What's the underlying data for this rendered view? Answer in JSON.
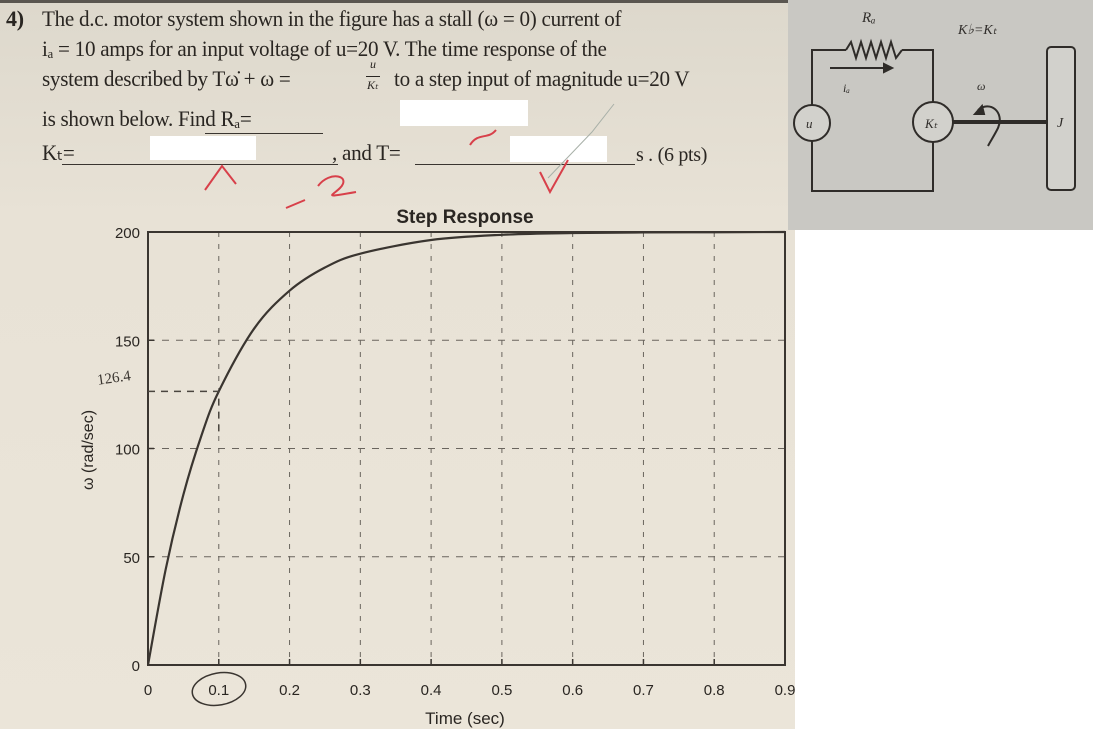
{
  "question": {
    "number": "4)",
    "line1": "The d.c. motor system shown in the figure has a stall (ω = 0) current of",
    "line2": "iₐ = 10 amps for an input voltage of u=20 V. The time response of the",
    "line3_a": "system described by Tω̇ + ω =",
    "line3_frac_num": "u",
    "line3_frac_den": "Kₜ",
    "line3_b": "to a step input of magnitude u=20 V",
    "line4": "is shown below. Find Rₐ=",
    "line5_a": "Kₜ=",
    "line5_b": ", and T=",
    "line5_c": "s . (6 pts)"
  },
  "diagram": {
    "resistor_label": "Rₐ",
    "current_label": "iₐ",
    "source_label": "u",
    "motor_label": "Kₜ",
    "constant_label": "K♭=Kₜ",
    "speed_label": "ω",
    "inertia_label": "J"
  },
  "handwriting": {
    "value_label": "126.4",
    "grade_mark": "-2"
  },
  "chart_data": {
    "type": "line",
    "title": "Step Response",
    "xlabel": "Time (sec)",
    "ylabel": "ω (rad/sec)",
    "xlim": [
      0,
      0.9
    ],
    "ylim": [
      0,
      200
    ],
    "xticks": [
      "0",
      "0.1",
      "0.2",
      "0.3",
      "0.4",
      "0.5",
      "0.6",
      "0.7",
      "0.8",
      "0.9"
    ],
    "yticks": [
      "0",
      "50",
      "100",
      "150",
      "200"
    ],
    "grid": true,
    "x": [
      0,
      0.025,
      0.05,
      0.075,
      0.1,
      0.15,
      0.2,
      0.25,
      0.3,
      0.4,
      0.5,
      0.6,
      0.7,
      0.8,
      0.9
    ],
    "y": [
      0,
      44.2,
      78.7,
      105.5,
      126.4,
      155.4,
      172.9,
      183.6,
      190.0,
      196.3,
      198.7,
      199.5,
      199.8,
      199.9,
      200.0
    ],
    "annotation": {
      "x": 0.1,
      "y": 126.4,
      "label": "126.4"
    },
    "colors": {
      "line": "#3a3530",
      "grid": "#6a655e",
      "ink": "#d8404a"
    }
  }
}
